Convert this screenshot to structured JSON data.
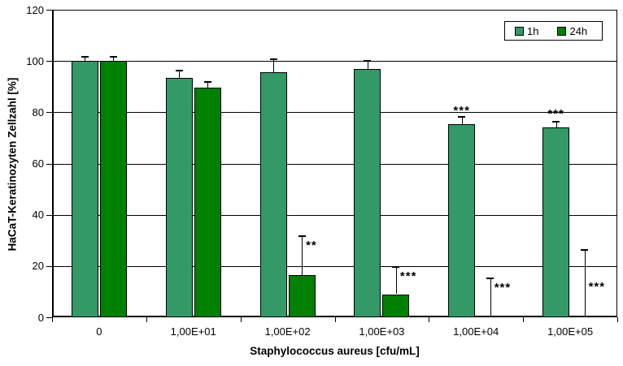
{
  "chart_data": {
    "type": "bar",
    "title": "",
    "ylabel": "HaCaT-Keratinozyten Zellzahl [%]",
    "xlabel": "Staphylococcus aureus [cfu/mL]",
    "ylim": [
      0,
      120
    ],
    "yticks": [
      0,
      20,
      40,
      60,
      80,
      100,
      120
    ],
    "grid": true,
    "legend_position": "top-right-inside",
    "background_color": "#FFFFFF",
    "axis_color": "#000000",
    "categories": [
      "0",
      "1,00E+01",
      "1,00E+02",
      "1,00E+03",
      "1,00E+04",
      "1,00E+05"
    ],
    "series": [
      {
        "name": "1h",
        "color": "#339966",
        "values": [
          100,
          93.5,
          95.5,
          97,
          75.5,
          74
        ],
        "error_up": [
          2,
          3,
          5.5,
          3.5,
          3,
          2.5
        ],
        "significance": [
          "",
          "",
          "",
          "",
          "***",
          "***"
        ]
      },
      {
        "name": "24h",
        "color": "#008000",
        "values": [
          100,
          89.5,
          16.5,
          9,
          0,
          0
        ],
        "error_up": [
          2,
          2.5,
          15.5,
          11,
          15.5,
          26.5
        ],
        "significance": [
          "",
          "",
          "**",
          "***",
          "***",
          "***"
        ],
        "significance_label_y": [
          null,
          null,
          28,
          16,
          11.5,
          12
        ]
      }
    ]
  }
}
